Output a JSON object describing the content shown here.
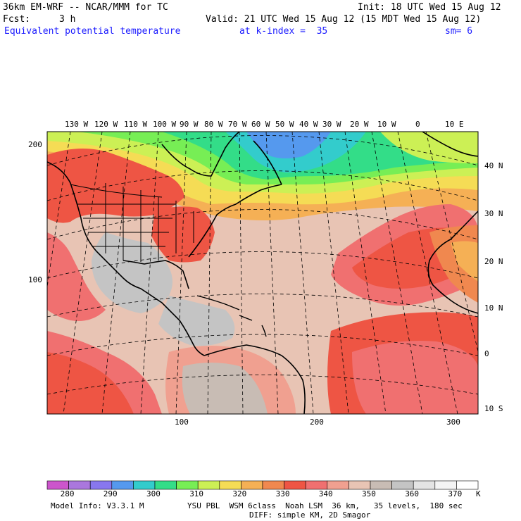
{
  "header": {
    "model_title": "36km EM-WRF -- NCAR/MMM for TC",
    "init_label": "Init: 18 UTC Wed 15 Aug 12",
    "fcst_label": "Fcst:",
    "fcst_value": "3 h",
    "valid_label": "Valid: 21 UTC Wed 15 Aug 12 (15 MDT Wed 15 Aug 12)",
    "field_name": "Equivalent potential temperature",
    "level_info": "at k-index =  35",
    "smoothing": "sm= 6"
  },
  "map": {
    "frame_x_labels": [
      "100",
      "200",
      "300"
    ],
    "frame_y_labels": [
      "200",
      "100"
    ],
    "longitude_labels": [
      "130 W",
      "120 W",
      "110 W",
      "100 W",
      "90 W",
      "80 W",
      "70 W",
      "60 W",
      "50 W",
      "40 W",
      "30 W",
      "20 W",
      "10 W",
      "0",
      "10 E"
    ],
    "latitude_labels": [
      "40 N",
      "30 N",
      "20 N",
      "10 N",
      "0",
      "10 S"
    ]
  },
  "legend": {
    "unit": "K",
    "ticks": [
      "280",
      "290",
      "300",
      "310",
      "320",
      "330",
      "340",
      "350",
      "360",
      "370"
    ],
    "colors": [
      "#cc55cc",
      "#aa77dd",
      "#8877ee",
      "#5599ee",
      "#33cccc",
      "#33dd88",
      "#77ee55",
      "#ccf055",
      "#f5dc55",
      "#f5b055",
      "#f0884f",
      "#ee5544",
      "#f07070",
      "#f0a090",
      "#e8c4b4",
      "#c8bcb4",
      "#c4c4c4",
      "#e4e4e4",
      "#f4f4f4",
      "#ffffff"
    ]
  },
  "footer": {
    "model_info": "Model Info: V3.3.1 M",
    "physics_line1": "YSU PBL  WSM 6class  Noah LSM  36 km,   35 levels,  180 sec",
    "physics_line2": "DIFF: simple KM, 2D Smagor"
  }
}
